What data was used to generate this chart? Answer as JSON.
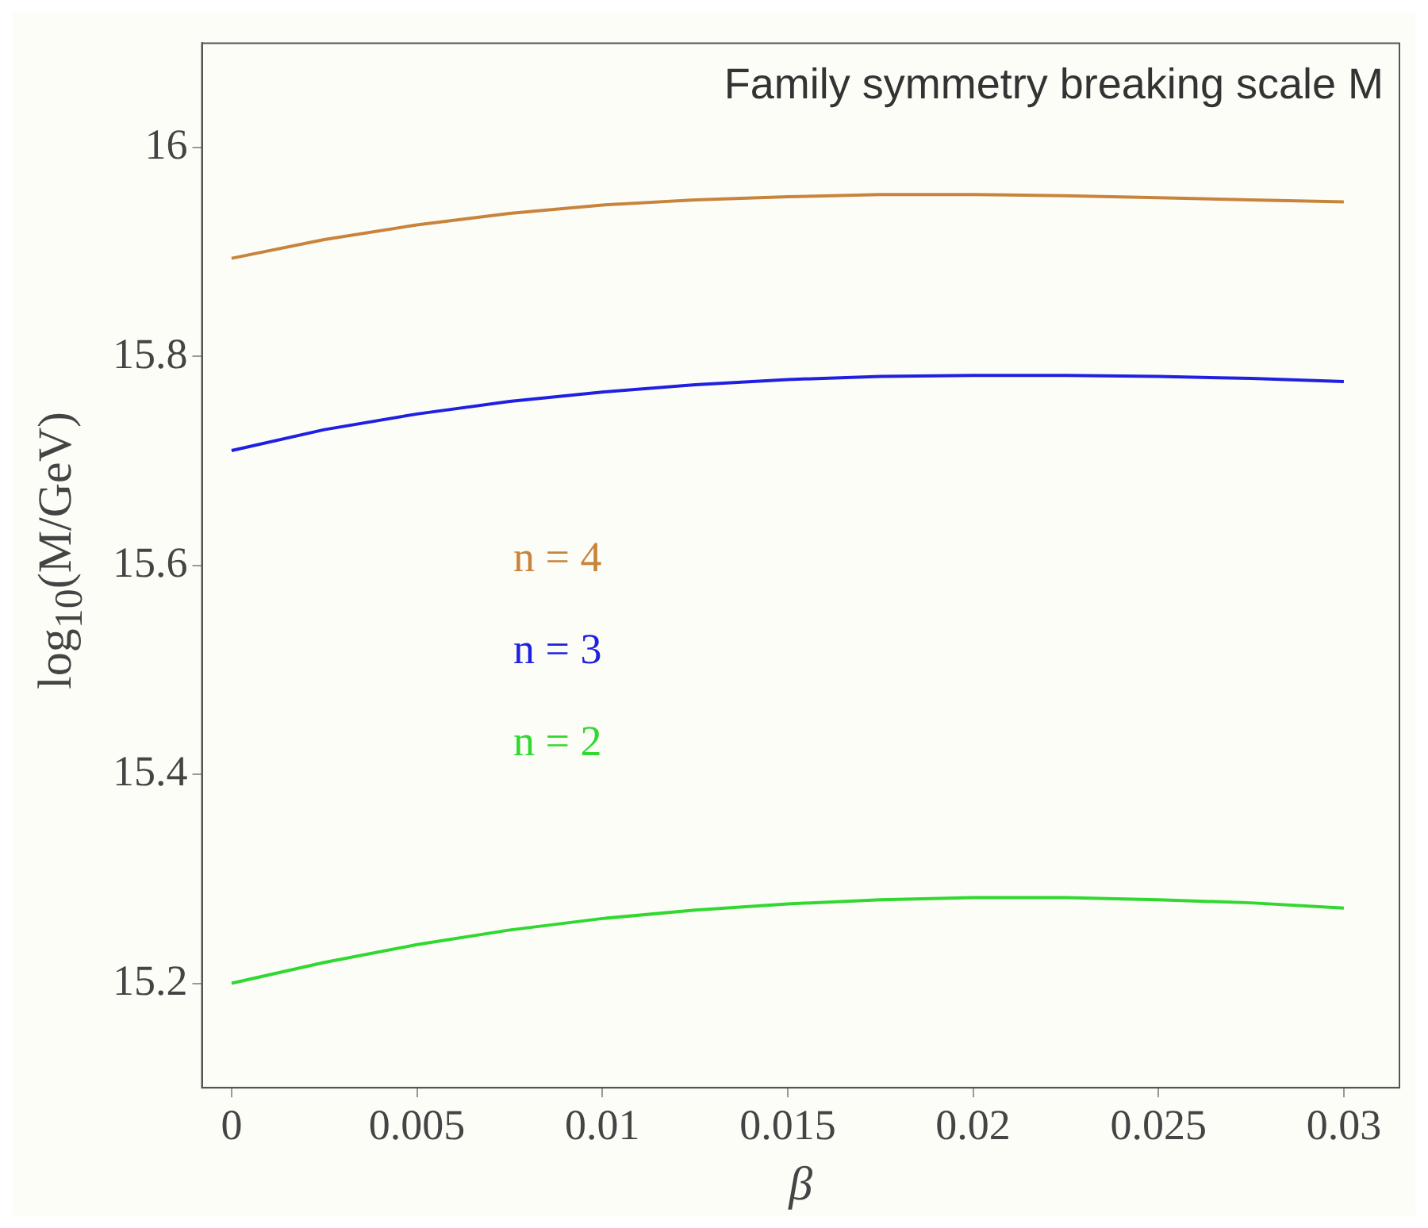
{
  "chart_data": {
    "type": "line",
    "title": "Family symmetry breaking scale M",
    "xlabel": "β",
    "ylabel": "log$_{10}$(M/GeV)",
    "x": [
      0,
      0.0025,
      0.005,
      0.0075,
      0.01,
      0.0125,
      0.015,
      0.0175,
      0.02,
      0.0225,
      0.025,
      0.0275,
      0.03
    ],
    "series": [
      {
        "name": "n = 4",
        "color": "#c8843c",
        "values": [
          15.894,
          15.912,
          15.926,
          15.937,
          15.945,
          15.95,
          15.953,
          15.955,
          15.955,
          15.954,
          15.952,
          15.95,
          15.948
        ]
      },
      {
        "name": "n = 3",
        "color": "#2020e0",
        "values": [
          15.71,
          15.73,
          15.745,
          15.757,
          15.766,
          15.773,
          15.778,
          15.781,
          15.782,
          15.782,
          15.781,
          15.779,
          15.776
        ]
      },
      {
        "name": "n = 2",
        "color": "#30d830",
        "values": [
          15.2,
          15.22,
          15.237,
          15.251,
          15.262,
          15.27,
          15.276,
          15.28,
          15.282,
          15.282,
          15.28,
          15.277,
          15.272
        ]
      }
    ],
    "xlim": [
      -0.0008,
      0.0315
    ],
    "xticks": [
      0,
      0.005,
      0.01,
      0.015,
      0.02,
      0.025,
      0.03
    ],
    "ylim": [
      15.1,
      16.1
    ],
    "yticks": [
      15.2,
      15.4,
      15.6,
      15.8,
      16
    ],
    "grid": false,
    "marker": "none",
    "line_style": "solid"
  }
}
